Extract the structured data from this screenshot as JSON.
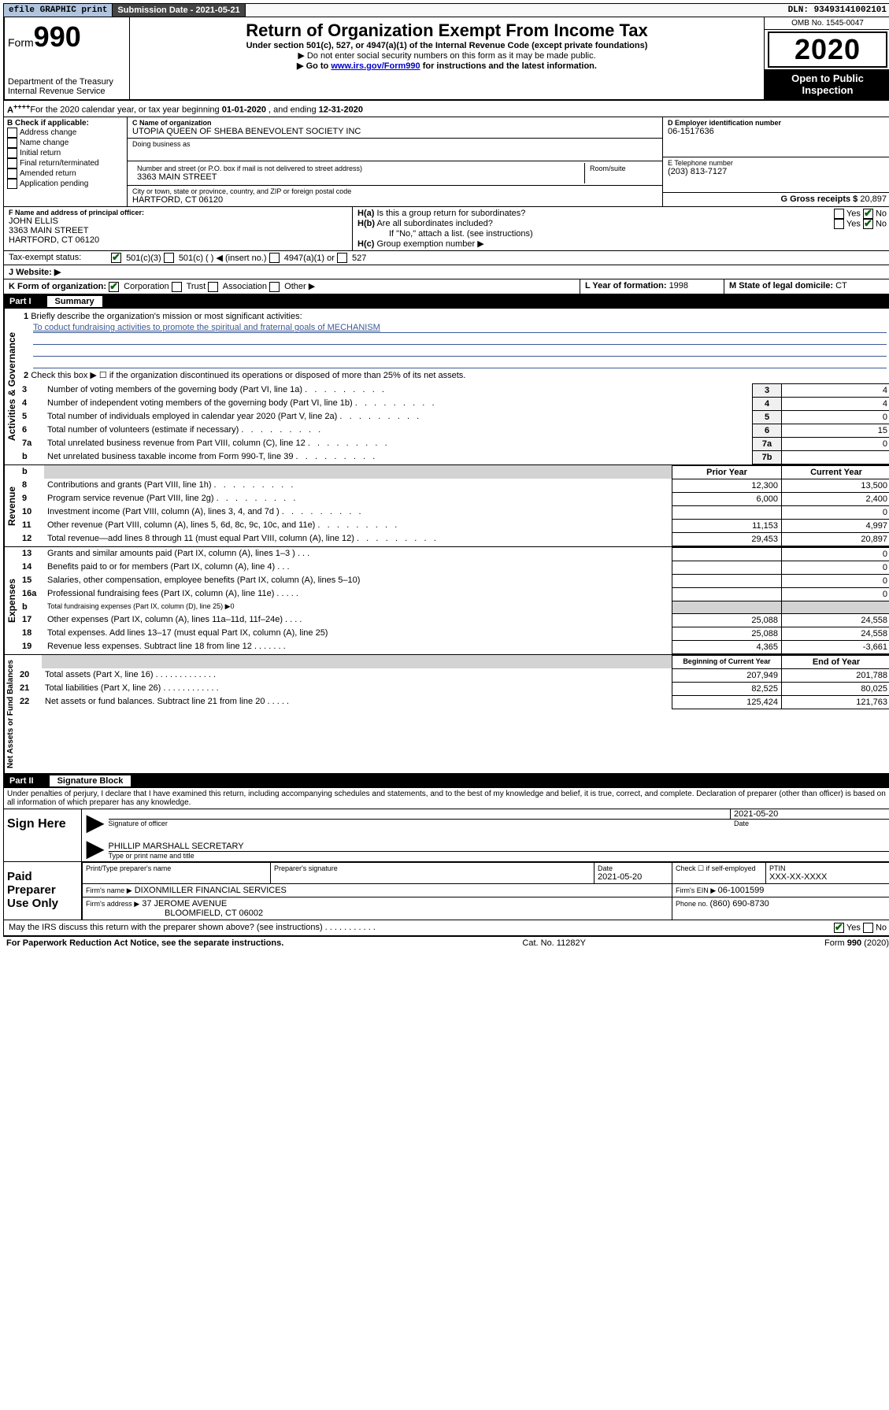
{
  "topbar": {
    "efile": "efile GRAPHIC print",
    "sub_label": "Submission Date - 2021-05-21",
    "dln": "DLN: 93493141002101"
  },
  "header": {
    "form_prefix": "Form",
    "form_num": "990",
    "dept": "Department of the Treasury",
    "irs": "Internal Revenue Service",
    "title": "Return of Organization Exempt From Income Tax",
    "subtitle": "Under section 501(c), 527, or 4947(a)(1) of the Internal Revenue Code (except private foundations)",
    "note1": "▶ Do not enter social security numbers on this form as it may be made public.",
    "note2_prefix": "▶ Go to ",
    "note2_link": "www.irs.gov/Form990",
    "note2_suffix": " for instructions and the latest information.",
    "omb": "OMB No. 1545-0047",
    "year": "2020",
    "open": "Open to Public Inspection"
  },
  "rowA": {
    "text_a": "For the 2020 calendar year, or tax year beginning ",
    "begin": "01-01-2020",
    "mid": "   , and ending ",
    "end": "12-31-2020"
  },
  "boxB": {
    "label": "B Check if applicable:",
    "items": [
      "Address change",
      "Name change",
      "Initial return",
      "Final return/terminated",
      "Amended return",
      "Application pending"
    ]
  },
  "boxC": {
    "name_label": "C Name of organization",
    "name": "UTOPIA QUEEN OF SHEBA BENEVOLENT SOCIETY INC",
    "dba_label": "Doing business as",
    "addr_label": "Number and street (or P.O. box if mail is not delivered to street address)",
    "room_label": "Room/suite",
    "addr": "3363 MAIN STREET",
    "city_label": "City or town, state or province, country, and ZIP or foreign postal code",
    "city": "HARTFORD, CT  06120"
  },
  "boxD": {
    "label": "D Employer identification number",
    "val": "06-1517636"
  },
  "boxE": {
    "label": "E Telephone number",
    "val": "(203) 813-7127"
  },
  "boxG": {
    "label": "G Gross receipts $ ",
    "val": "20,897"
  },
  "boxF": {
    "label": "F  Name and address of principal officer:",
    "name": "JOHN ELLIS",
    "addr1": "3363 MAIN STREET",
    "addr2": "HARTFORD, CT  06120"
  },
  "boxH": {
    "ha": "Is this a group return for subordinates?",
    "hb": "Are all subordinates included?",
    "hb_note": "If \"No,\" attach a list. (see instructions)",
    "hc": "Group exemption number ▶"
  },
  "taxExempt": {
    "label": "Tax-exempt status:",
    "a": "501(c)(3)",
    "b": "501(c) (  ) ◀ (insert no.)",
    "c": "4947(a)(1) or",
    "d": "527"
  },
  "boxJ": {
    "label": "J   Website: ▶"
  },
  "boxK": {
    "label": "K Form of organization:",
    "opts": [
      "Corporation",
      "Trust",
      "Association",
      "Other ▶"
    ]
  },
  "boxL": {
    "label": "L Year of formation: ",
    "val": "1998"
  },
  "boxM": {
    "label": "M State of legal domicile: ",
    "val": "CT"
  },
  "part1": {
    "label": "Part I",
    "title": "Summary"
  },
  "summary": {
    "gov_label": "Activities & Governance",
    "line1_label": "Briefly describe the organization's mission or most significant activities:",
    "line1_text": "To coduct fundraising activities to promote the spiritual and fraternal goals of MECHANISM",
    "line2": "Check this box ▶ ☐  if the organization discontinued its operations or disposed of more than 25% of its net assets.",
    "rows_gov": [
      {
        "n": "3",
        "d": "Number of voting members of the governing body (Part VI, line 1a)",
        "k": "3",
        "v": "4"
      },
      {
        "n": "4",
        "d": "Number of independent voting members of the governing body (Part VI, line 1b)",
        "k": "4",
        "v": "4"
      },
      {
        "n": "5",
        "d": "Total number of individuals employed in calendar year 2020 (Part V, line 2a)",
        "k": "5",
        "v": "0"
      },
      {
        "n": "6",
        "d": "Total number of volunteers (estimate if necessary)",
        "k": "6",
        "v": "15"
      },
      {
        "n": "7a",
        "d": "Total unrelated business revenue from Part VIII, column (C), line 12",
        "k": "7a",
        "v": "0"
      },
      {
        "n": "b",
        "d": "Net unrelated business taxable income from Form 990-T, line 39",
        "k": "7b",
        "v": ""
      }
    ],
    "rev_label": "Revenue",
    "exp_label": "Expenses",
    "net_label": "Net Assets or Fund Balances",
    "col_prior": "Prior Year",
    "col_curr": "Current Year",
    "col_beg": "Beginning of Current Year",
    "col_end": "End of Year",
    "rows_rev": [
      {
        "n": "8",
        "d": "Contributions and grants (Part VIII, line 1h)",
        "p": "12,300",
        "c": "13,500"
      },
      {
        "n": "9",
        "d": "Program service revenue (Part VIII, line 2g)",
        "p": "6,000",
        "c": "2,400"
      },
      {
        "n": "10",
        "d": "Investment income (Part VIII, column (A), lines 3, 4, and 7d )",
        "p": "",
        "c": "0"
      },
      {
        "n": "11",
        "d": "Other revenue (Part VIII, column (A), lines 5, 6d, 8c, 9c, 10c, and 11e)",
        "p": "11,153",
        "c": "4,997"
      },
      {
        "n": "12",
        "d": "Total revenue—add lines 8 through 11 (must equal Part VIII, column (A), line 12)",
        "p": "29,453",
        "c": "20,897"
      }
    ],
    "rows_exp": [
      {
        "n": "13",
        "d": "Grants and similar amounts paid (Part IX, column (A), lines 1–3 )   .   .   .",
        "p": "",
        "c": "0"
      },
      {
        "n": "14",
        "d": "Benefits paid to or for members (Part IX, column (A), line 4)   .   .   .",
        "p": "",
        "c": "0"
      },
      {
        "n": "15",
        "d": "Salaries, other compensation, employee benefits (Part IX, column (A), lines 5–10)",
        "p": "",
        "c": "0"
      },
      {
        "n": "16a",
        "d": "Professional fundraising fees (Part IX, column (A), line 11e)   .   .   .   .   .",
        "p": "",
        "c": "0"
      },
      {
        "n": "b",
        "d": "Total fundraising expenses (Part IX, column (D), line 25) ▶0",
        "grey": true
      },
      {
        "n": "17",
        "d": "Other expenses (Part IX, column (A), lines 11a–11d, 11f–24e)   .   .   .   .",
        "p": "25,088",
        "c": "24,558"
      },
      {
        "n": "18",
        "d": "Total expenses. Add lines 13–17 (must equal Part IX, column (A), line 25)",
        "p": "25,088",
        "c": "24,558"
      },
      {
        "n": "19",
        "d": "Revenue less expenses. Subtract line 18 from line 12   .   .   .   .   .   .   .",
        "p": "4,365",
        "c": "-3,661"
      }
    ],
    "rows_net": [
      {
        "n": "20",
        "d": "Total assets (Part X, line 16)   .   .   .   .   .   .   .   .   .   .   .   .   .",
        "p": "207,949",
        "c": "201,788"
      },
      {
        "n": "21",
        "d": "Total liabilities (Part X, line 26)   .   .   .   .   .   .   .   .   .   .   .   .",
        "p": "82,525",
        "c": "80,025"
      },
      {
        "n": "22",
        "d": "Net assets or fund balances. Subtract line 21 from line 20   .   .   .   .   .",
        "p": "125,424",
        "c": "121,763"
      }
    ]
  },
  "part2": {
    "label": "Part II",
    "title": "Signature Block"
  },
  "sig": {
    "perjury": "Under penalties of perjury, I declare that I have examined this return, including accompanying schedules and statements, and to the best of my knowledge and belief, it is true, correct, and complete. Declaration of preparer (other than officer) is based on all information of which preparer has any knowledge.",
    "sign_here": "Sign Here",
    "date1": "2021-05-20",
    "sig_off_label": "Signature of officer",
    "date_label": "Date",
    "name": "PHILLIP MARSHALL  SECRETARY",
    "name_label": "Type or print name and title",
    "paid_label": "Paid Preparer Use Only",
    "h1": "Print/Type preparer's name",
    "h2": "Preparer's signature",
    "h3": "Date",
    "h4": "Check ☐ if self-employed",
    "h5": "PTIN",
    "date2": "2021-05-20",
    "ptin": "XXX-XX-XXXX",
    "firm_label": "Firm's name   ▶",
    "firm": "DIXONMILLER FINANCIAL SERVICES",
    "ein_label": "Firm's EIN ▶ ",
    "ein": "06-1001599",
    "addr_label": "Firm's address ▶",
    "addr1": "37 JEROME AVENUE",
    "addr2": "BLOOMFIELD, CT  06002",
    "phone_label": "Phone no. ",
    "phone": "(860) 690-8730",
    "discuss": "May the IRS discuss this return with the preparer shown above? (see instructions)   .    .    .    .    .    .    .    .    .    .    ."
  },
  "footer": {
    "left": "For Paperwork Reduction Act Notice, see the separate instructions.",
    "mid": "Cat. No. 11282Y",
    "right": "Form 990 (2020)"
  },
  "yn": {
    "yes": "Yes",
    "no": "No"
  }
}
